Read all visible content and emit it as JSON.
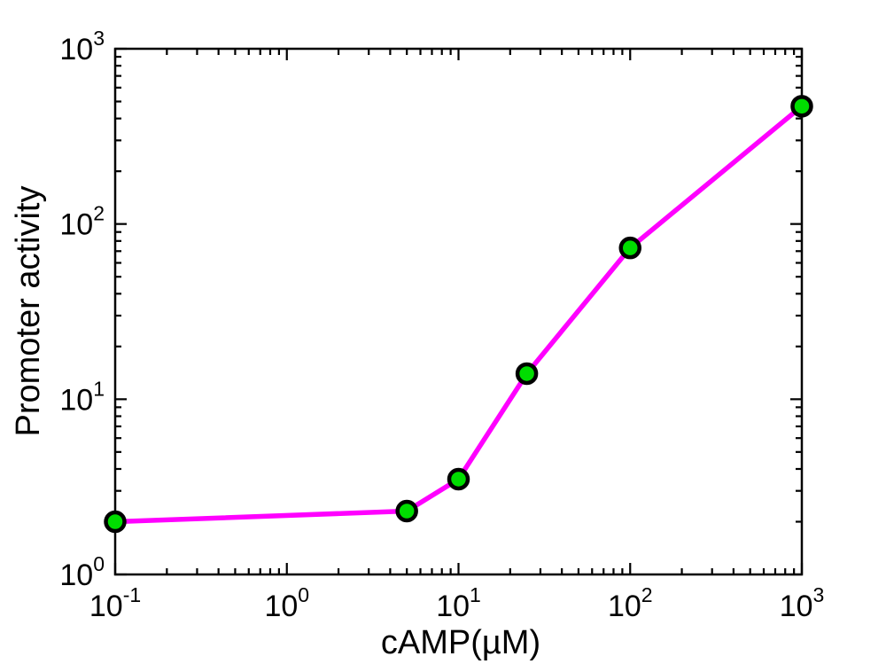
{
  "chart_data": {
    "type": "line",
    "title": "",
    "xlabel": "cAMP(µM)",
    "ylabel": "Promoter activity",
    "x_scale": "log",
    "y_scale": "log",
    "xlim": [
      0.1,
      1000
    ],
    "ylim": [
      1,
      1000
    ],
    "grid": false,
    "legend": false,
    "axis_color": "#000000",
    "background_color": "#ffffff",
    "tick_base": "10",
    "x_tick_exponents": [
      -1,
      0,
      1,
      2,
      3
    ],
    "y_tick_exponents": [
      0,
      1,
      2,
      3
    ],
    "series": [
      {
        "name": "promoter-activity",
        "x": [
          0.1,
          5,
          10,
          25,
          100,
          1000
        ],
        "y": [
          2.0,
          2.3,
          3.5,
          14,
          73,
          470
        ],
        "line_color": "#FF00FF",
        "line_width": 5.5,
        "marker": "circle",
        "marker_fill": "#00DD00",
        "marker_edge_color": "#000000",
        "marker_edge_width": 4.5,
        "marker_radius": 10.5
      }
    ]
  }
}
